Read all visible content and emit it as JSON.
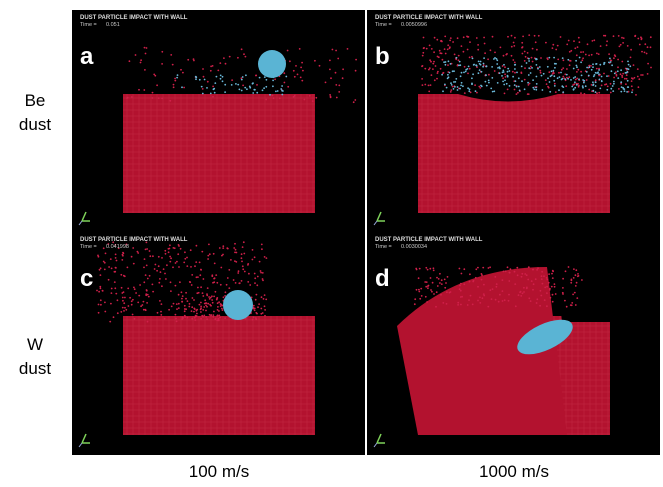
{
  "row_labels": [
    [
      "Be",
      "dust"
    ],
    [
      "W",
      "dust"
    ]
  ],
  "column_labels": [
    "100 m/s",
    "1000 m/s"
  ],
  "panels": [
    {
      "letter": "a",
      "header": "DUST PARTICLE IMPACT WITH WALL",
      "time_label": "Time =",
      "time": "0.051"
    },
    {
      "letter": "b",
      "header": "DUST PARTICLE IMPACT WITH WALL",
      "time_label": "Time =",
      "time": "0.0050996"
    },
    {
      "letter": "c",
      "header": "DUST PARTICLE IMPACT WITH WALL",
      "time_label": "Time =",
      "time": "0.041998"
    },
    {
      "letter": "d",
      "header": "DUST PARTICLE IMPACT WITH WALL",
      "time_label": "Time =",
      "time": "0.0030034"
    }
  ]
}
